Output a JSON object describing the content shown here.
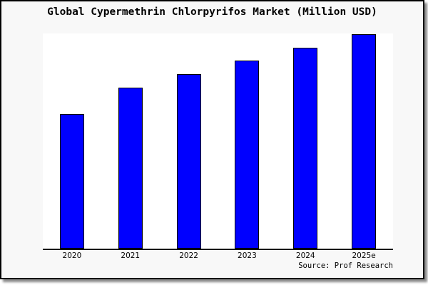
{
  "chart_data": {
    "type": "bar",
    "title": "Global Cypermethrin Chlorpyrifos Market (Million USD)",
    "categories": [
      "2020",
      "2021",
      "2022",
      "2023",
      "2024",
      "2025e"
    ],
    "values": [
      62.8,
      75.1,
      81.4,
      87.7,
      93.7,
      100
    ],
    "values_note": "No y-axis or data labels shown in chart; values are relative index estimated from bar heights (tallest bar 2025e = 100)",
    "xlabel": "",
    "ylabel": "",
    "ylim": [
      0,
      101
    ],
    "grid": false,
    "legend": null,
    "source": "Source: Prof Research",
    "colors": {
      "bar_fill": "#0000ff",
      "bar_border": "#000000",
      "frame_background": "#f8f8f8",
      "plot_background": "#ffffff",
      "frame_border": "#000000",
      "text": "#000000",
      "shadow": "#8c8c8c"
    }
  }
}
